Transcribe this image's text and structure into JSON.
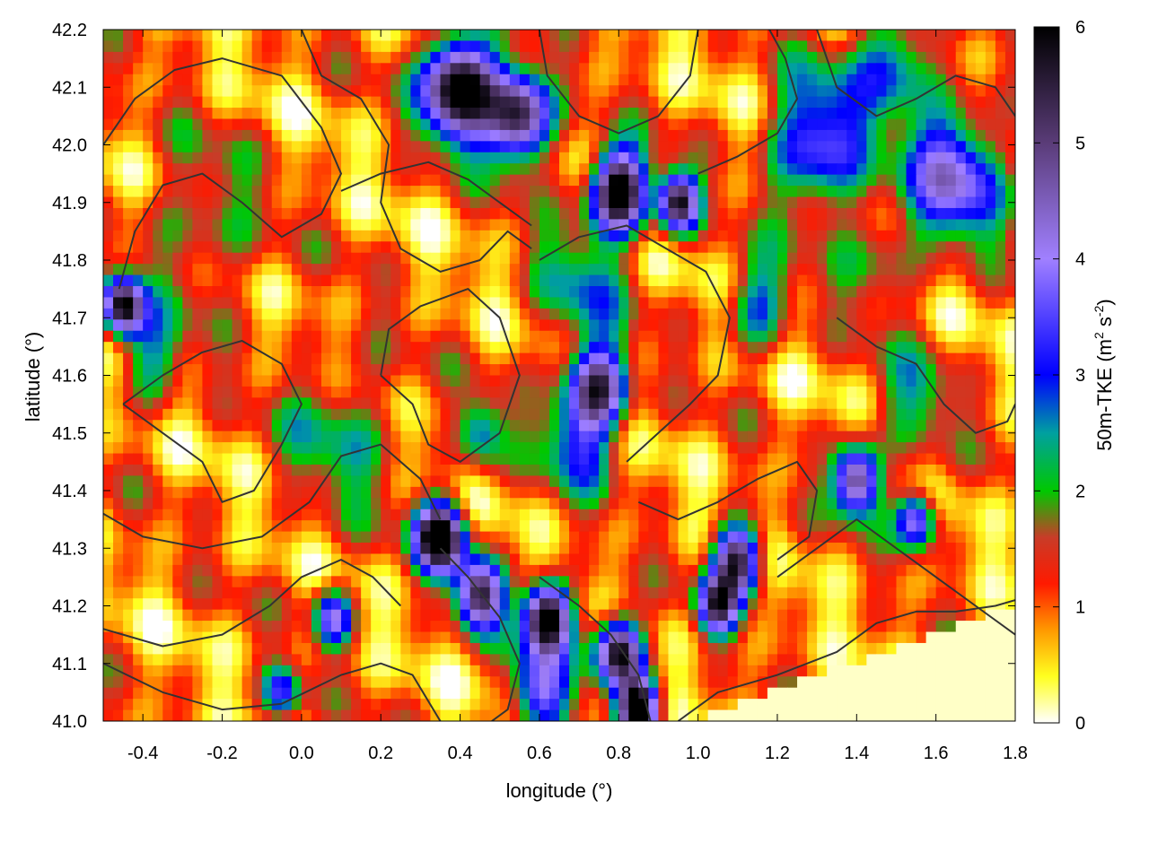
{
  "chart_data": {
    "type": "heatmap",
    "title": "",
    "xlabel": "longitude (°)",
    "ylabel": "latitude (°)",
    "colorbar_label": "50m-TKE (m",
    "colorbar_label_sup1": "2",
    "colorbar_label_mid": " s",
    "colorbar_label_sup2": "-2",
    "colorbar_label_end": ")",
    "xlim": [
      -0.5,
      1.8
    ],
    "ylim": [
      41.0,
      42.2
    ],
    "x_ticks": [
      "-0.4",
      "-0.2",
      "0.0",
      "0.2",
      "0.4",
      "0.6",
      "0.8",
      "1.0",
      "1.2",
      "1.4",
      "1.6",
      "1.8"
    ],
    "x_tick_values": [
      -0.4,
      -0.2,
      0.0,
      0.2,
      0.4,
      0.6,
      0.8,
      1.0,
      1.2,
      1.4,
      1.6,
      1.8
    ],
    "y_ticks": [
      "41.0",
      "41.1",
      "41.2",
      "41.3",
      "41.4",
      "41.5",
      "41.6",
      "41.7",
      "41.8",
      "41.9",
      "42.0",
      "42.1",
      "42.2"
    ],
    "y_tick_values": [
      41.0,
      41.1,
      41.2,
      41.3,
      41.4,
      41.5,
      41.6,
      41.7,
      41.8,
      41.9,
      42.0,
      42.1,
      42.2
    ],
    "colorbar_range": [
      0,
      6
    ],
    "colorbar_ticks": [
      "0",
      "1",
      "2",
      "3",
      "4",
      "5",
      "6"
    ],
    "colorbar_tick_values": [
      0,
      1,
      2,
      3,
      4,
      5,
      6
    ],
    "colormap": [
      {
        "v": 0.0,
        "color": "#ffffff"
      },
      {
        "v": 0.4,
        "color": "#ffff20"
      },
      {
        "v": 0.8,
        "color": "#ff9900"
      },
      {
        "v": 1.2,
        "color": "#ff1a00"
      },
      {
        "v": 1.6,
        "color": "#c83c28"
      },
      {
        "v": 2.0,
        "color": "#00c800"
      },
      {
        "v": 2.5,
        "color": "#00a0a0"
      },
      {
        "v": 3.0,
        "color": "#0000ff"
      },
      {
        "v": 4.0,
        "color": "#a080ff"
      },
      {
        "v": 5.0,
        "color": "#5a3c78"
      },
      {
        "v": 6.0,
        "color": "#000000"
      }
    ],
    "contour_color": "#333333",
    "field_sources": [
      {
        "lon": -0.45,
        "lat": 41.72,
        "amp": 5.0,
        "r": 0.05
      },
      {
        "lon": -0.38,
        "lat": 41.62,
        "amp": 1.6,
        "r": 0.08
      },
      {
        "lon": 0.4,
        "lat": 42.1,
        "amp": 6.0,
        "r": 0.09
      },
      {
        "lon": 0.55,
        "lat": 42.05,
        "amp": 5.0,
        "r": 0.08
      },
      {
        "lon": 0.8,
        "lat": 41.92,
        "amp": 6.0,
        "r": 0.07
      },
      {
        "lon": 0.95,
        "lat": 41.9,
        "amp": 5.0,
        "r": 0.05
      },
      {
        "lon": 1.3,
        "lat": 42.0,
        "amp": 3.0,
        "r": 0.12
      },
      {
        "lon": 1.65,
        "lat": 41.95,
        "amp": 3.2,
        "r": 0.12
      },
      {
        "lon": 1.5,
        "lat": 42.15,
        "amp": 2.2,
        "r": 0.1
      },
      {
        "lon": 0.75,
        "lat": 41.58,
        "amp": 3.8,
        "r": 0.07
      },
      {
        "lon": 0.7,
        "lat": 41.5,
        "amp": 2.2,
        "r": 0.1
      },
      {
        "lon": 0.45,
        "lat": 41.5,
        "amp": 2.0,
        "r": 0.06
      },
      {
        "lon": 0.35,
        "lat": 41.32,
        "amp": 6.0,
        "r": 0.06
      },
      {
        "lon": 0.45,
        "lat": 41.22,
        "amp": 4.5,
        "r": 0.06
      },
      {
        "lon": 0.62,
        "lat": 41.18,
        "amp": 6.0,
        "r": 0.06
      },
      {
        "lon": 0.8,
        "lat": 41.12,
        "amp": 5.5,
        "r": 0.06
      },
      {
        "lon": 0.85,
        "lat": 41.02,
        "amp": 6.0,
        "r": 0.05
      },
      {
        "lon": 0.6,
        "lat": 41.05,
        "amp": 3.0,
        "r": 0.07
      },
      {
        "lon": 0.08,
        "lat": 41.18,
        "amp": 3.0,
        "r": 0.05
      },
      {
        "lon": -0.05,
        "lat": 41.05,
        "amp": 2.5,
        "r": 0.05
      },
      {
        "lon": 1.1,
        "lat": 41.28,
        "amp": 5.0,
        "r": 0.06
      },
      {
        "lon": 1.05,
        "lat": 41.2,
        "amp": 4.0,
        "r": 0.05
      },
      {
        "lon": 1.4,
        "lat": 41.42,
        "amp": 4.5,
        "r": 0.06
      },
      {
        "lon": 1.55,
        "lat": 41.35,
        "amp": 3.5,
        "r": 0.05
      },
      {
        "lon": 1.15,
        "lat": 41.72,
        "amp": 2.0,
        "r": 0.08
      },
      {
        "lon": 1.45,
        "lat": 41.8,
        "amp": 1.2,
        "r": 0.1
      },
      {
        "lon": 0.1,
        "lat": 41.5,
        "amp": 1.3,
        "r": 0.15
      },
      {
        "lon": -0.25,
        "lat": 41.85,
        "amp": 1.2,
        "r": 0.15
      },
      {
        "lon": 0.7,
        "lat": 41.75,
        "amp": 1.5,
        "r": 0.12
      },
      {
        "lon": 1.55,
        "lat": 41.55,
        "amp": 1.3,
        "r": 0.1
      }
    ],
    "calm_sea_region": {
      "lon_min": 0.98,
      "lat_min": 41.0,
      "lat_at_lon_max": 41.2,
      "value": 0.1
    },
    "contours": [
      [
        [
          -0.5,
          42.0
        ],
        [
          -0.42,
          42.08
        ],
        [
          -0.32,
          42.13
        ],
        [
          -0.2,
          42.15
        ],
        [
          -0.05,
          42.12
        ],
        [
          0.05,
          42.03
        ],
        [
          0.1,
          41.95
        ],
        [
          0.05,
          41.88
        ],
        [
          -0.05,
          41.84
        ],
        [
          -0.15,
          41.9
        ],
        [
          -0.25,
          41.95
        ],
        [
          -0.35,
          41.93
        ],
        [
          -0.42,
          41.85
        ],
        [
          -0.46,
          41.75
        ]
      ],
      [
        [
          -0.5,
          41.36
        ],
        [
          -0.4,
          41.32
        ],
        [
          -0.25,
          41.3
        ],
        [
          -0.1,
          41.32
        ],
        [
          0.02,
          41.38
        ],
        [
          0.1,
          41.46
        ],
        [
          0.2,
          41.48
        ],
        [
          0.3,
          41.42
        ],
        [
          0.35,
          41.35
        ]
      ],
      [
        [
          -0.5,
          41.16
        ],
        [
          -0.35,
          41.13
        ],
        [
          -0.2,
          41.15
        ],
        [
          -0.08,
          41.2
        ],
        [
          0.0,
          41.25
        ],
        [
          0.1,
          41.28
        ],
        [
          0.18,
          41.25
        ],
        [
          0.25,
          41.2
        ]
      ],
      [
        [
          -0.5,
          41.1
        ],
        [
          -0.35,
          41.05
        ],
        [
          -0.2,
          41.02
        ],
        [
          -0.05,
          41.03
        ],
        [
          0.1,
          41.08
        ],
        [
          0.2,
          41.1
        ],
        [
          0.28,
          41.08
        ],
        [
          0.35,
          41.0
        ]
      ],
      [
        [
          0.0,
          42.2
        ],
        [
          0.05,
          42.12
        ],
        [
          0.15,
          42.08
        ],
        [
          0.22,
          42.0
        ],
        [
          0.2,
          41.9
        ],
        [
          0.25,
          41.82
        ],
        [
          0.35,
          41.78
        ],
        [
          0.45,
          41.8
        ],
        [
          0.52,
          41.85
        ],
        [
          0.58,
          41.82
        ]
      ],
      [
        [
          0.2,
          41.6
        ],
        [
          0.28,
          41.55
        ],
        [
          0.32,
          41.48
        ],
        [
          0.4,
          41.45
        ],
        [
          0.5,
          41.5
        ],
        [
          0.55,
          41.6
        ],
        [
          0.5,
          41.7
        ],
        [
          0.42,
          41.75
        ],
        [
          0.3,
          41.72
        ],
        [
          0.22,
          41.68
        ],
        [
          0.2,
          41.6
        ]
      ],
      [
        [
          0.6,
          42.2
        ],
        [
          0.62,
          42.12
        ],
        [
          0.7,
          42.05
        ],
        [
          0.8,
          42.02
        ],
        [
          0.9,
          42.05
        ],
        [
          0.98,
          42.12
        ],
        [
          1.0,
          42.2
        ]
      ],
      [
        [
          0.6,
          41.8
        ],
        [
          0.7,
          41.84
        ],
        [
          0.82,
          41.86
        ],
        [
          0.92,
          41.82
        ],
        [
          1.02,
          41.78
        ],
        [
          1.08,
          41.7
        ],
        [
          1.05,
          41.6
        ],
        [
          0.98,
          41.55
        ],
        [
          0.9,
          41.5
        ],
        [
          0.82,
          41.45
        ]
      ],
      [
        [
          0.85,
          41.38
        ],
        [
          0.95,
          41.35
        ],
        [
          1.05,
          41.38
        ],
        [
          1.15,
          41.42
        ],
        [
          1.25,
          41.45
        ],
        [
          1.3,
          41.4
        ],
        [
          1.28,
          41.32
        ],
        [
          1.2,
          41.28
        ]
      ],
      [
        [
          1.2,
          41.25
        ],
        [
          1.3,
          41.3
        ],
        [
          1.4,
          41.35
        ],
        [
          1.5,
          41.3
        ],
        [
          1.6,
          41.25
        ],
        [
          1.7,
          41.2
        ],
        [
          1.8,
          41.15
        ]
      ],
      [
        [
          1.3,
          42.2
        ],
        [
          1.35,
          42.1
        ],
        [
          1.45,
          42.05
        ],
        [
          1.55,
          42.08
        ],
        [
          1.65,
          42.12
        ],
        [
          1.75,
          42.1
        ],
        [
          1.8,
          42.05
        ]
      ],
      [
        [
          1.35,
          41.7
        ],
        [
          1.45,
          41.65
        ],
        [
          1.55,
          41.62
        ],
        [
          1.62,
          41.55
        ],
        [
          1.7,
          41.5
        ],
        [
          1.78,
          41.52
        ],
        [
          1.8,
          41.55
        ]
      ],
      [
        [
          0.35,
          41.3
        ],
        [
          0.42,
          41.25
        ],
        [
          0.5,
          41.18
        ],
        [
          0.55,
          41.1
        ],
        [
          0.52,
          41.02
        ],
        [
          0.48,
          41.0
        ]
      ],
      [
        [
          0.6,
          41.25
        ],
        [
          0.7,
          41.2
        ],
        [
          0.78,
          41.15
        ],
        [
          0.85,
          41.08
        ],
        [
          0.88,
          41.0
        ]
      ],
      [
        [
          0.95,
          41.0
        ],
        [
          1.05,
          41.05
        ],
        [
          1.2,
          41.08
        ],
        [
          1.35,
          41.12
        ],
        [
          1.45,
          41.17
        ],
        [
          1.55,
          41.19
        ],
        [
          1.65,
          41.19
        ],
        [
          1.75,
          41.2
        ],
        [
          1.8,
          41.21
        ]
      ],
      [
        [
          -0.45,
          41.55
        ],
        [
          -0.35,
          41.5
        ],
        [
          -0.25,
          41.45
        ],
        [
          -0.2,
          41.38
        ],
        [
          -0.12,
          41.4
        ],
        [
          -0.05,
          41.48
        ],
        [
          0.0,
          41.55
        ],
        [
          -0.05,
          41.62
        ],
        [
          -0.15,
          41.66
        ],
        [
          -0.25,
          41.64
        ],
        [
          -0.35,
          41.6
        ],
        [
          -0.45,
          41.55
        ]
      ],
      [
        [
          0.1,
          41.92
        ],
        [
          0.2,
          41.95
        ],
        [
          0.32,
          41.97
        ],
        [
          0.42,
          41.94
        ],
        [
          0.5,
          41.9
        ],
        [
          0.58,
          41.86
        ]
      ],
      [
        [
          1.0,
          41.95
        ],
        [
          1.1,
          41.98
        ],
        [
          1.2,
          42.02
        ],
        [
          1.25,
          42.08
        ],
        [
          1.22,
          42.15
        ],
        [
          1.18,
          42.2
        ]
      ]
    ]
  }
}
